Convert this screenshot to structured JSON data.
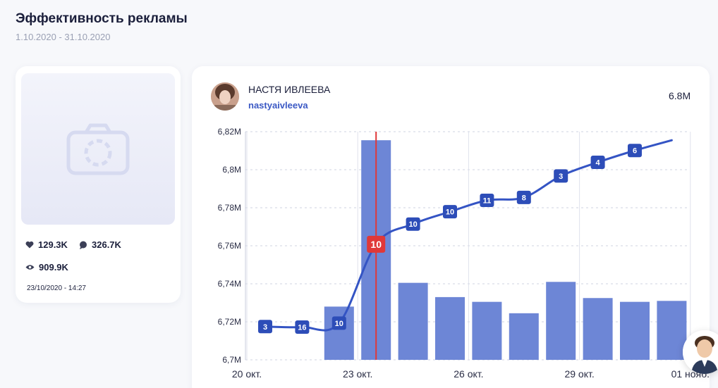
{
  "header": {
    "title": "Эффективность рекламы",
    "dates": "1.10.2020 - 31.10.2020"
  },
  "post": {
    "likes": "129.3K",
    "comments": "326.7K",
    "views": "909.9K",
    "date": "23/10/2020 - 14:27"
  },
  "creator": {
    "name": "НАСТЯ ИВЛЕЕВА",
    "handle": "nastyaivleeva",
    "total": "6.8M"
  },
  "colors": {
    "line": "#3454c4",
    "bar": "#6d86d6",
    "highlight": "#e03838",
    "accent": "#3a58c4"
  },
  "chart_data": {
    "type": "bar+line",
    "y_ticks": [
      "6,82M",
      "6,8M",
      "6,78M",
      "6,76M",
      "6,74M",
      "6,72M",
      "6,7M"
    ],
    "ylim": [
      6.7,
      6.82
    ],
    "x_labels": [
      {
        "label": "20 окт.",
        "index": 0
      },
      {
        "label": "23 окт.",
        "index": 3
      },
      {
        "label": "26 окт.",
        "index": 6
      },
      {
        "label": "29 окт.",
        "index": 9
      },
      {
        "label": "01 нояб.",
        "index": 12
      }
    ],
    "highlight_index": 3,
    "bars": [
      null,
      null,
      6.728,
      6.8155,
      6.7405,
      6.733,
      6.7305,
      6.7245,
      6.741,
      6.7325,
      6.7305,
      6.731
    ],
    "line": [
      6.7175,
      6.7172,
      6.7193,
      6.7608,
      6.7714,
      6.7779,
      6.7839,
      6.7854,
      6.7967,
      6.8039,
      6.8101,
      6.8155
    ],
    "badges": [
      "3",
      "16",
      "10",
      "10",
      "10",
      "10",
      "11",
      "8",
      "3",
      "4",
      "6",
      null
    ]
  }
}
